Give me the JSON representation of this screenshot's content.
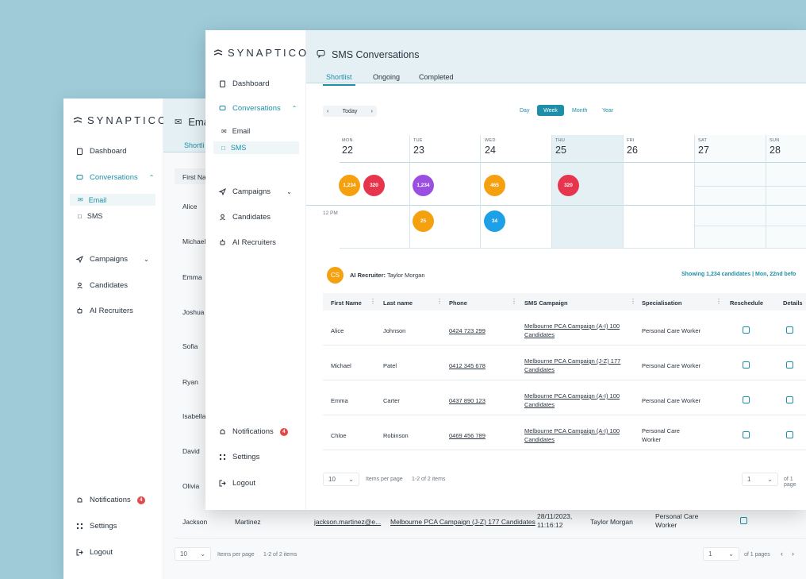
{
  "brand": "SYNAPTICO",
  "colors": {
    "accent": "#1d8fa8",
    "background": "#9fcbd9",
    "orange": "#f5a10f",
    "red": "#e8354e",
    "purple": "#9b4fe0",
    "blue": "#1ea0e6"
  },
  "back": {
    "title": "Ema",
    "tab": "Shortli",
    "nav": {
      "dashboard": "Dashboard",
      "conversations": "Conversations",
      "email": "Email",
      "sms": "SMS",
      "campaigns": "Campaigns",
      "candidates": "Candidates",
      "ai_recruiters": "AI Recruiters",
      "notifications": "Notifications",
      "notifications_count": "4",
      "settings": "Settings",
      "logout": "Logout"
    },
    "column_header": "First Na",
    "first_names": [
      "Alice",
      "Michael",
      "Emma",
      "Joshua",
      "Sofia",
      "Ryan",
      "Isabella",
      "David",
      "Olivia"
    ],
    "last_row": {
      "first": "Jackson",
      "last": "Martinez",
      "email": "jackson.martinez@e...",
      "campaign": "Melbourne PCA Campaign (J-Z) 177 Candidates",
      "date": "28/11/2023,",
      "time": "11:16:12",
      "recruiter": "Taylor Morgan",
      "spec1": "Personal Care",
      "spec2": "Worker"
    },
    "footer": {
      "per_page_value": "10",
      "per_page_label": "Items per page",
      "range": "1-2 of 2 items",
      "page_value": "1",
      "pages_label": "of 1 pages"
    }
  },
  "front": {
    "title": "SMS Conversations",
    "tabs": [
      "Shortlist",
      "Ongoing",
      "Completed"
    ],
    "nav": {
      "dashboard": "Dashboard",
      "conversations": "Conversations",
      "email": "Email",
      "sms": "SMS",
      "campaigns": "Campaigns",
      "candidates": "Candidates",
      "ai_recruiters": "AI Recruiters",
      "notifications": "Notifications",
      "notifications_count": "4",
      "settings": "Settings",
      "logout": "Logout"
    },
    "calendar": {
      "today": "Today",
      "views": [
        "Day",
        "Week",
        "Month",
        "Year"
      ],
      "active_view": "Week",
      "days": [
        {
          "name": "MON",
          "num": "22"
        },
        {
          "name": "TUE",
          "num": "23"
        },
        {
          "name": "WED",
          "num": "24"
        },
        {
          "name": "THU",
          "num": "25"
        },
        {
          "name": "FRI",
          "num": "26"
        },
        {
          "name": "SAT",
          "num": "27"
        },
        {
          "name": "SUN",
          "num": "28"
        }
      ],
      "time_label": "12 PM",
      "events": [
        {
          "day": "MON",
          "slot": "top",
          "label": "1,234",
          "color": "orange"
        },
        {
          "day": "MON",
          "slot": "top",
          "label": "320",
          "color": "red"
        },
        {
          "day": "TUE",
          "slot": "top",
          "label": "1,234",
          "color": "purple"
        },
        {
          "day": "WED",
          "slot": "top",
          "label": "465",
          "color": "orange"
        },
        {
          "day": "THU",
          "slot": "top",
          "label": "320",
          "color": "red"
        },
        {
          "day": "TUE",
          "slot": "bottom",
          "label": "25",
          "color": "orange"
        },
        {
          "day": "WED",
          "slot": "bottom",
          "label": "34",
          "color": "blue"
        }
      ]
    },
    "recruiter": {
      "initials": "CS",
      "label": "AI Recruiter:",
      "name": "Taylor Morgan",
      "showing": "Showing 1,234 candidates | Mon, 22nd befo"
    },
    "table": {
      "headers": [
        "First Name",
        "Last name",
        "Phone",
        "SMS Campaign",
        "Specialisation",
        "Reschedule",
        "Details"
      ],
      "rows": [
        {
          "first": "Alice",
          "last": "Johnson",
          "phone": "0424 723 299",
          "campaign1": "Melbourne PCA Campaign (A-I) 100",
          "campaign2": "Candidates",
          "spec1": "Personal Care Worker",
          "spec2": ""
        },
        {
          "first": "Michael",
          "last": "Patel",
          "phone": "0412 345 678",
          "campaign1": "Melbourne PCA Campaign (J-Z) 177",
          "campaign2": "Candidates",
          "spec1": "Personal Care Worker",
          "spec2": ""
        },
        {
          "first": "Emma",
          "last": "Carter",
          "phone": "0437 890 123",
          "campaign1": "Melbourne PCA Campaign (A-I) 100",
          "campaign2": "Candidates",
          "spec1": "Personal Care Worker",
          "spec2": ""
        },
        {
          "first": "Chloe",
          "last": "Robinson",
          "phone": "0469 456 789",
          "campaign1": "Melbourne PCA Campaign (A-I) 100",
          "campaign2": "Candidates",
          "spec1": "Personal Care",
          "spec2": "Worker"
        }
      ]
    },
    "footer": {
      "per_page_value": "10",
      "per_page_label": "Items per page",
      "range": "1-2 of 2 items",
      "page_value": "1",
      "pages_label": "of 1 page"
    }
  }
}
